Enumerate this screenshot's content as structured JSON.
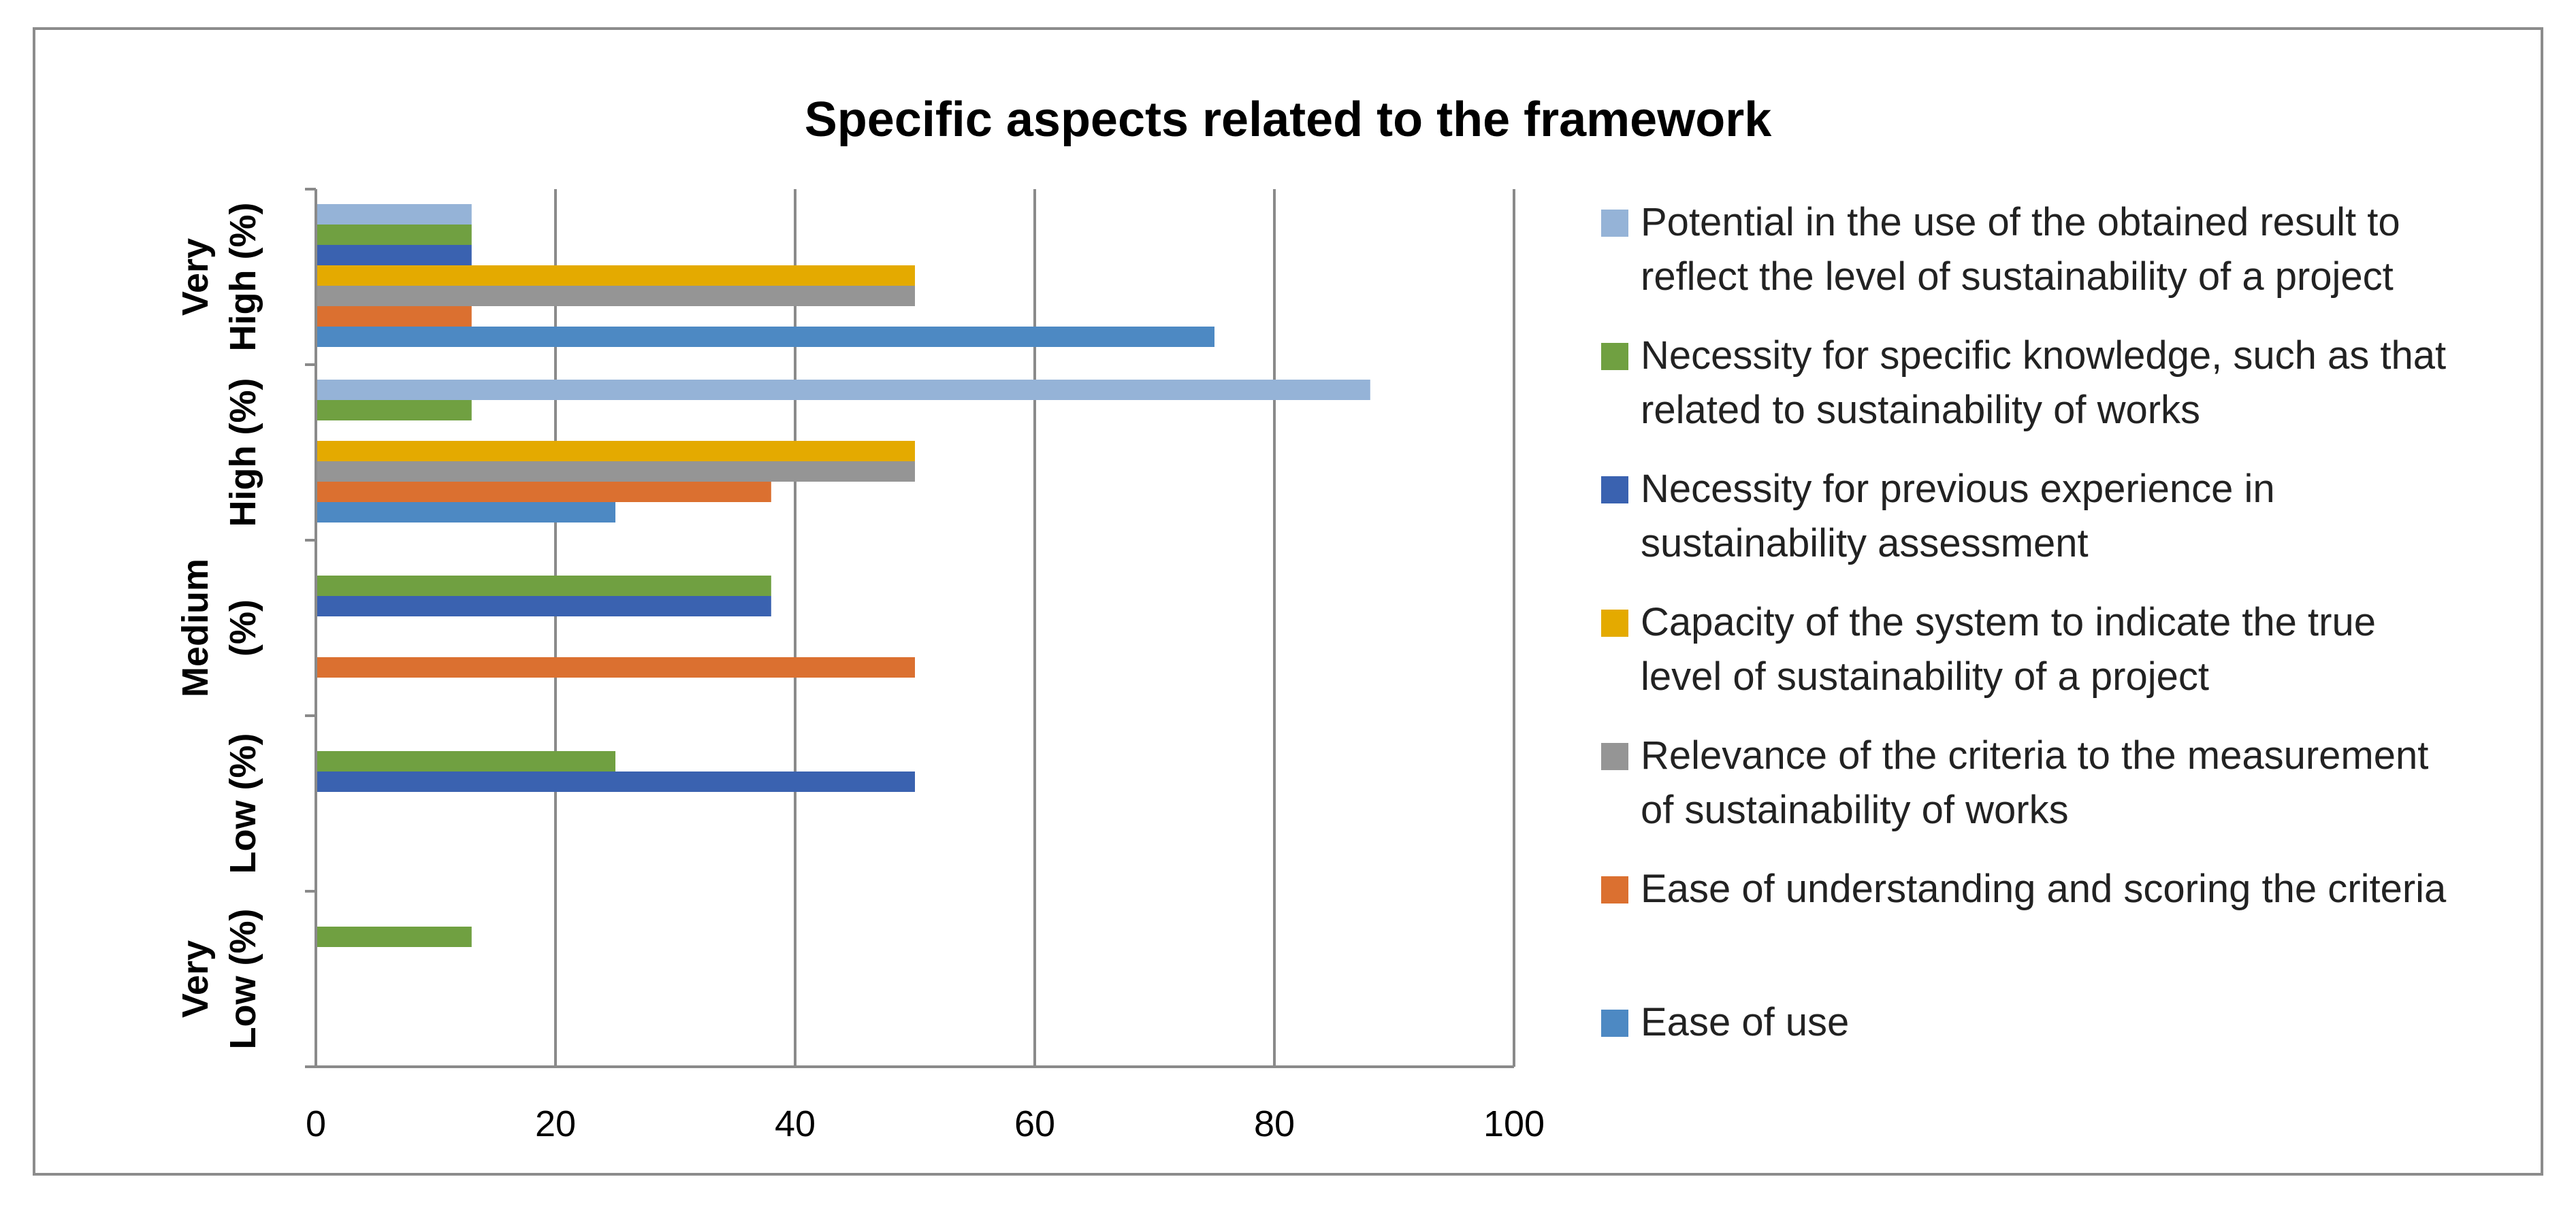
{
  "chart_data": {
    "type": "bar",
    "orientation": "horizontal",
    "title": "Specific aspects related to the framework",
    "xlabel": "",
    "ylabel": "",
    "xlim": [
      0,
      100
    ],
    "x_ticks": [
      "0",
      "20",
      "40",
      "60",
      "80",
      "100"
    ],
    "grid": true,
    "legend_position": "right",
    "categories": [
      [
        "Very",
        "High (%)"
      ],
      [
        "High (%)"
      ],
      [
        "Medium",
        "(%)"
      ],
      [
        "Low (%)"
      ],
      [
        "Very",
        "Low (%)"
      ]
    ],
    "series": [
      {
        "name": "Potential in the use of the obtained result to reflect the level of sustainability of a project",
        "legend_lines": [
          "Potential in the use of the obtained result to",
          "reflect the level of sustainability of a project"
        ],
        "color": "#95B3D7",
        "values": [
          13,
          88,
          0,
          0,
          0
        ]
      },
      {
        "name": "Necessity for specific knowledge, such as that related to sustainability of works",
        "legend_lines": [
          "Necessity for specific knowledge, such as that",
          "related to sustainability of works"
        ],
        "color": "#70A041",
        "values": [
          13,
          13,
          38,
          25,
          13
        ]
      },
      {
        "name": "Necessity for previous experience in sustainability assessment",
        "legend_lines": [
          "Necessity for previous experience in",
          "sustainability assessment"
        ],
        "color": "#3A62B0",
        "values": [
          13,
          0,
          38,
          50,
          0
        ]
      },
      {
        "name": "Capacity of the system to indicate the true level of sustainability of a project",
        "legend_lines": [
          "Capacity of the system to indicate the true",
          "level of sustainability of a project"
        ],
        "color": "#E4AA00",
        "values": [
          50,
          50,
          0,
          0,
          0
        ]
      },
      {
        "name": "Relevance of the criteria to the measurement of sustainability of works",
        "legend_lines": [
          "Relevance of the criteria to the measurement",
          "of sustainability of works"
        ],
        "color": "#959595",
        "values": [
          50,
          50,
          0,
          0,
          0
        ]
      },
      {
        "name": "Ease of understanding and scoring the criteria",
        "legend_lines": [
          "Ease of understanding and scoring the criteria"
        ],
        "color": "#DB7030",
        "values": [
          13,
          38,
          50,
          0,
          0
        ]
      },
      {
        "name": "Ease of use",
        "legend_lines": [
          "Ease of use"
        ],
        "color": "#4D89C3",
        "values": [
          75,
          25,
          0,
          0,
          0
        ]
      }
    ]
  }
}
